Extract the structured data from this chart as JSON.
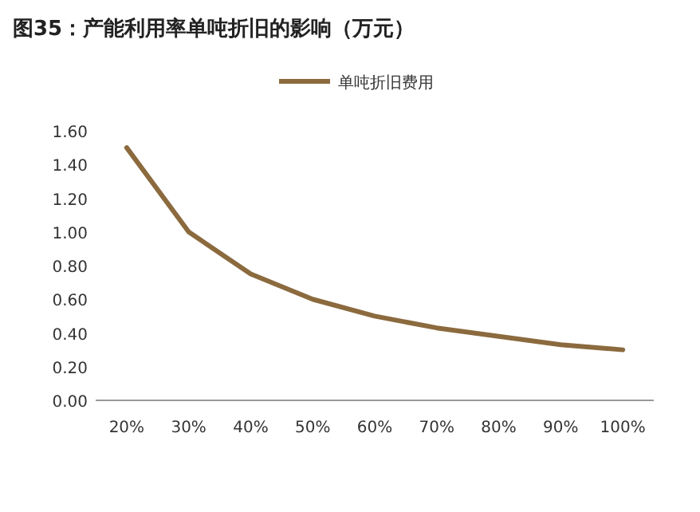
{
  "chart_data": {
    "type": "line",
    "title": "图35：产能利用率单吨折旧的影响（万元）",
    "categories": [
      "20%",
      "30%",
      "40%",
      "50%",
      "60%",
      "70%",
      "80%",
      "90%",
      "100%"
    ],
    "series": [
      {
        "name": "单吨折旧费用",
        "color": "#8b6a3e",
        "values": [
          1.5,
          1.0,
          0.75,
          0.6,
          0.5,
          0.43,
          0.38,
          0.33,
          0.3
        ]
      }
    ],
    "ylim": [
      0,
      1.6
    ],
    "yticks": [
      {
        "value": 0,
        "label": "0.00"
      },
      {
        "value": 0.2,
        "label": "0.20"
      },
      {
        "value": 0.4,
        "label": "0.40"
      },
      {
        "value": 0.6,
        "label": "0.60"
      },
      {
        "value": 0.8,
        "label": "0.80"
      },
      {
        "value": 1.0,
        "label": "1.00"
      },
      {
        "value": 1.2,
        "label": "1.20"
      },
      {
        "value": 1.4,
        "label": "1.40"
      },
      {
        "value": 1.6,
        "label": "1.60"
      }
    ],
    "legend": "top",
    "grid": false,
    "marker": "none",
    "line_style": "solid"
  }
}
